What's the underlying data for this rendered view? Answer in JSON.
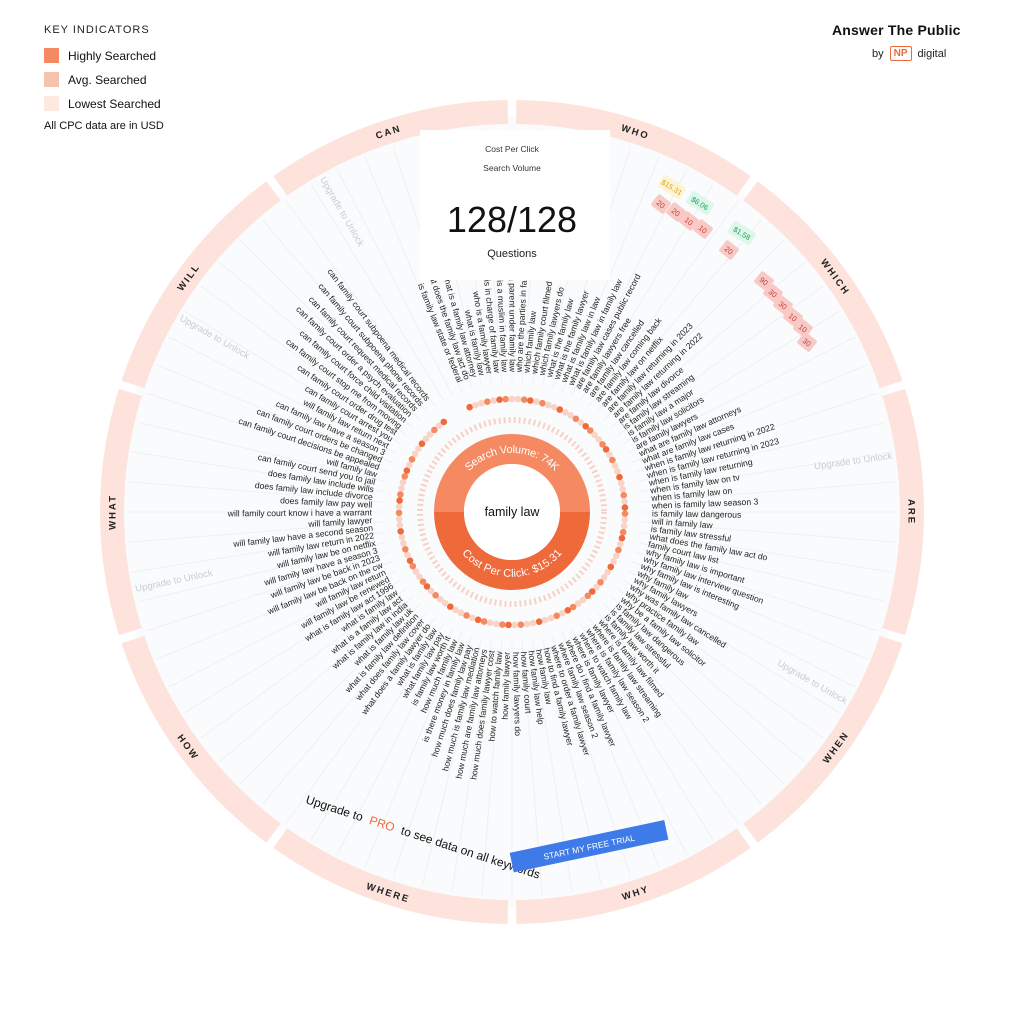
{
  "legend": {
    "title": "KEY INDICATORS",
    "items": [
      {
        "label": "Highly Searched",
        "color": "#f58a62"
      },
      {
        "label": "Avg. Searched",
        "color": "#f7c3b1"
      },
      {
        "label": "Lowest Searched",
        "color": "#fde8e2"
      }
    ],
    "note": "All CPC data are in USD"
  },
  "brand": {
    "name": "Answer The Public",
    "by": "by",
    "np": "NP",
    "digital": "digital"
  },
  "header": {
    "cpc_label": "Cost Per Click",
    "volume_label": "Search Volume",
    "count": "128/128",
    "count_label": "Questions"
  },
  "center": {
    "keyword": "family law",
    "volume_text": "Search Volume: 74K",
    "cpc_text": "Cost Per Click: $15.31"
  },
  "upgrade": {
    "prefix": "Upgrade to",
    "pro": "PRO",
    "suffix": "to see data on all keywords",
    "button": "START MY FREE TRIAL"
  },
  "unlock_text": "Upgrade to Unlock",
  "colors": {
    "accent": "#ef6a3b",
    "accent_light": "#f58a62",
    "ring": "#fde3dc",
    "button": "#3f7be8"
  },
  "categories": [
    {
      "name": "WHO",
      "questions": [
        "is family law state or federal",
        "what does the family law act do",
        "what is a family law attorney",
        "what is family law",
        "who is a family lawyer",
        "who is in charge of family law",
        "who is a muslim in family law",
        "who is a parent under family law",
        "who are the parties in family law"
      ]
    },
    {
      "name": "WHICH",
      "questions": [
        "which family law",
        "which family court filmed",
        "which family lawyers do",
        "what is the family law",
        "what is the family lawyer",
        "what is family law in law",
        "what is family law in family law"
      ]
    },
    {
      "name": "ARE",
      "questions": [
        "are family law cases public record",
        "are family lawyers free",
        "are family law cancelled",
        "are family law coming back",
        "are family law on netflix",
        "are family law returning in 2023",
        "are family law returning in 2022",
        "are family law divorce",
        "is family law streaming",
        "is family law a major",
        "is family law solicitors",
        "are family lawyers",
        "what are family law attorneys",
        "what are family law cases"
      ]
    },
    {
      "name": "WHEN",
      "questions": [
        "when is family law returning in 2022",
        "when is family law returning in 2023",
        "when is family law returning",
        "when is family law on tv",
        "when is family law on",
        "when is family law season 3",
        "is family law dangerous",
        "will in family law",
        "is family law stressful",
        "what does the family law act do",
        "family court law list"
      ]
    },
    {
      "name": "WHY",
      "questions": [
        "why family law is important",
        "why family law interview question",
        "why family law is interesting",
        "why family law",
        "why family lawyers",
        "why was family law cancelled",
        "why practice family law",
        "why be a family law solicitor",
        "is family law dangerous",
        "is family law stressful",
        "is family law worth it"
      ]
    },
    {
      "name": "WHERE",
      "questions": [
        "where is family law filmed",
        "where is family law streaming",
        "where is family law season 2",
        "where to watch family law",
        "where is family lawyer",
        "where do i find a family lawyer",
        "where family law season 2",
        "where to order a family lawyer",
        "how to find a family lawyer"
      ]
    },
    {
      "name": "HOW",
      "questions": [
        "how family law",
        "how family law help",
        "how family court",
        "how family lawyers do",
        "how family lawyer",
        "how to watch family law",
        "how much does family lawyer cost",
        "how much are family law attorneys",
        "how much is family law mediation",
        "how much does family law pay",
        "is there money in family law",
        "how much family law"
      ]
    },
    {
      "name": "WHAT",
      "questions": [
        "is family law worth it",
        "what family law pay",
        "what is family law",
        "what does a family lawyer do",
        "what does family law cover",
        "what is family law definition",
        "what is family law uk",
        "what is family law in india",
        "what is a family law act",
        "what is family law",
        "what is family law act 1996"
      ]
    },
    {
      "name": "WILL",
      "questions": [
        "will family law be renewed",
        "will family law return",
        "will family law be back on the cw",
        "will family law be back in 2023",
        "will family law have a season 3",
        "will family law be on netflix",
        "will family law return in 2022",
        "will family law have a second season",
        "will family lawyer",
        "will family court know i have a warrant",
        "does family law pay well",
        "does family law include divorce",
        "does family law include wills",
        "can family court send you to jail"
      ]
    },
    {
      "name": "CAN",
      "questions": [
        "will family law",
        "can family court decisions be appealed",
        "can family court orders be changed",
        "can family law have a season 3",
        "will family law return next",
        "can family court arrest you",
        "can family court order drug test",
        "can family court stop me from moving",
        "can family court force child visitation",
        "can family court order a psych evaluation",
        "can family court request medical records",
        "can family court subpoena phone records",
        "can family court subpoena medical records"
      ]
    }
  ],
  "cpc_badges": [
    "$15.31",
    "$6.06",
    "$1.58"
  ],
  "volume_badges": [
    "20",
    "20",
    "10",
    "10",
    "20",
    "90",
    "30",
    "30",
    "10",
    "10",
    "30"
  ]
}
